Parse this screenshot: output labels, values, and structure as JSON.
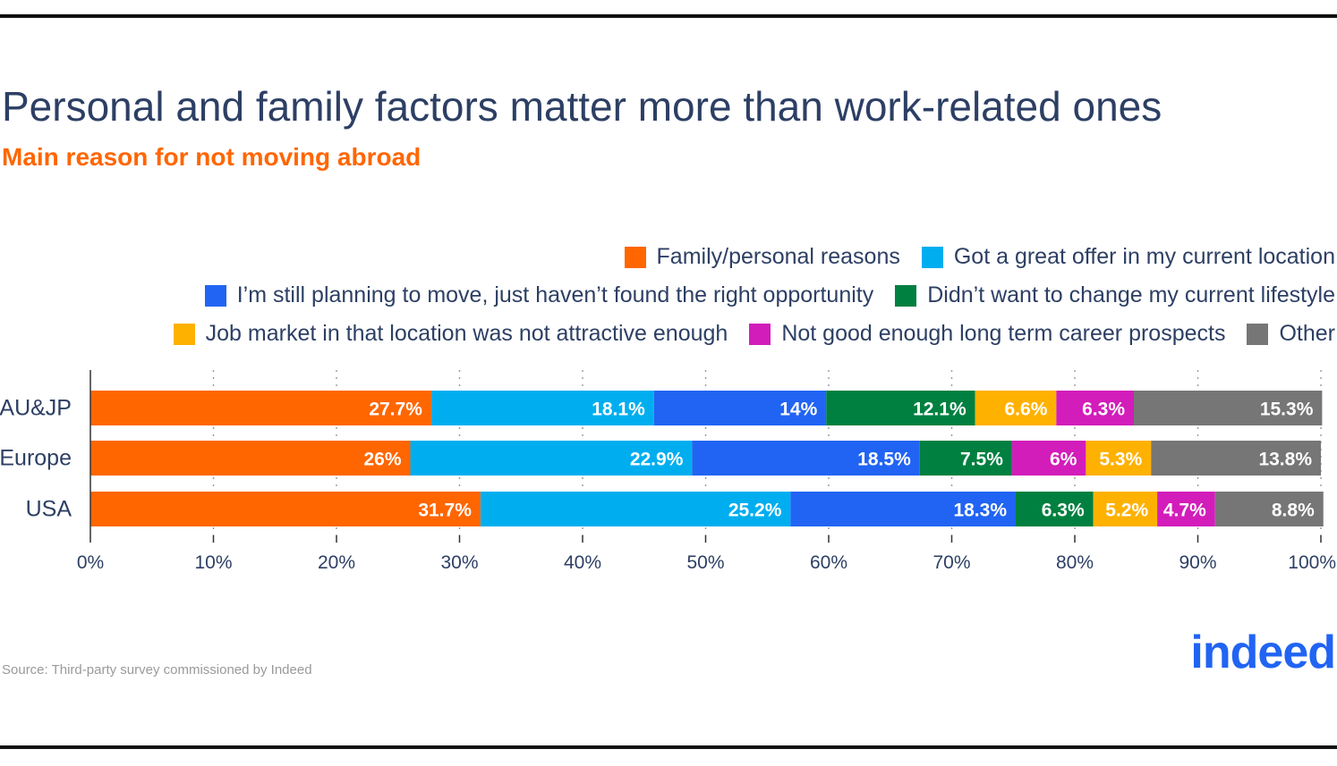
{
  "title": "Personal and family factors matter more than work-related ones",
  "subtitle": "Main reason for not moving abroad",
  "source": "Source: Third-party survey commissioned by Indeed",
  "logo_text": "indeed",
  "colors": {
    "title": "#2d3f64",
    "subtitle": "#ff6600",
    "logo": "#2164f3"
  },
  "legend_rows": [
    [
      0,
      1
    ],
    [
      2,
      3
    ],
    [
      4,
      5,
      6
    ]
  ],
  "chart_data": {
    "type": "bar",
    "orientation": "horizontal",
    "stacked": true,
    "categories": [
      "AU&JP",
      "Europe",
      "USA"
    ],
    "xlim": [
      0,
      100
    ],
    "x_ticks": [
      "0%",
      "10%",
      "20%",
      "30%",
      "40%",
      "50%",
      "60%",
      "70%",
      "80%",
      "90%",
      "100%"
    ],
    "grid": "vertical dotted",
    "legend_position": "top-right",
    "segments": [
      {
        "name": "Family/personal reasons",
        "color": "#ff6600",
        "cells": [
          {
            "value": 27.7,
            "label": "27.7%"
          },
          {
            "value": 26,
            "label": "26%"
          },
          {
            "value": 31.7,
            "label": "31.7%"
          }
        ]
      },
      {
        "name": "Got a great offer in my current location",
        "color": "#00aeef",
        "cells": [
          {
            "value": 18.1,
            "label": "18.1%"
          },
          {
            "value": 22.9,
            "label": "22.9%"
          },
          {
            "value": 25.2,
            "label": "25.2%"
          }
        ]
      },
      {
        "name": "I’m still planning to move, just haven’t found the right opportunity",
        "color": "#2164f3",
        "cells": [
          {
            "value": 14,
            "label": "14%"
          },
          {
            "value": 18.5,
            "label": "18.5%"
          },
          {
            "value": 18.3,
            "label": "18.3%"
          }
        ]
      },
      {
        "name": "Didn’t want to change my current lifestyle",
        "color": "#008040",
        "cells": [
          {
            "value": 12.1,
            "label": "12.1%"
          },
          {
            "value": 7.5,
            "label": "7.5%"
          },
          {
            "value": 6.3,
            "label": "6.3%"
          }
        ]
      }
    ],
    "series": [
      {
        "name": "Family/personal reasons",
        "color": "#ff6600",
        "values": [
          27.7,
          26,
          31.7
        ],
        "labels": [
          "27.7%",
          "26%",
          "31.7%"
        ]
      },
      {
        "name": "Got a great offer in my current location",
        "color": "#00aeef",
        "values": [
          18.1,
          22.9,
          25.2
        ],
        "labels": [
          "18.1%",
          "22.9%",
          "25.2%"
        ]
      },
      {
        "name": "I’m still planning to move, just haven’t found the right opportunity",
        "color": "#2164f3",
        "values": [
          14,
          18.5,
          18.3
        ],
        "labels": [
          "14%",
          "18.5%",
          "18.3%"
        ]
      },
      {
        "name": "Didn’t want to change my current lifestyle",
        "color": "#008040",
        "values": [
          12.1,
          7.5,
          6.3
        ],
        "labels": [
          "12.1%",
          "7.5%",
          "6.3%"
        ]
      },
      {
        "name": "Job market in that location was not attractive enough",
        "color": "#ffb100",
        "values": [
          6.6,
          5.3,
          5.2
        ],
        "labels": [
          "6.6%",
          "5.3%",
          "5.2%"
        ]
      },
      {
        "name": "Not good enough long term career prospects",
        "color": "#d21dba",
        "values": [
          6.3,
          6,
          4.7
        ],
        "labels": [
          "6.3%",
          "6%",
          "4.7%"
        ]
      },
      {
        "name": "Other",
        "color": "#767676",
        "values": [
          15.3,
          13.8,
          8.8
        ],
        "labels": [
          "15.3%",
          "13.8%",
          "8.8%"
        ]
      }
    ],
    "bar_order": [
      [
        0,
        1,
        2,
        3,
        4,
        5,
        6
      ],
      [
        0,
        1,
        2,
        3,
        5,
        4,
        6
      ],
      [
        0,
        1,
        2,
        3,
        4,
        5,
        6
      ]
    ]
  }
}
